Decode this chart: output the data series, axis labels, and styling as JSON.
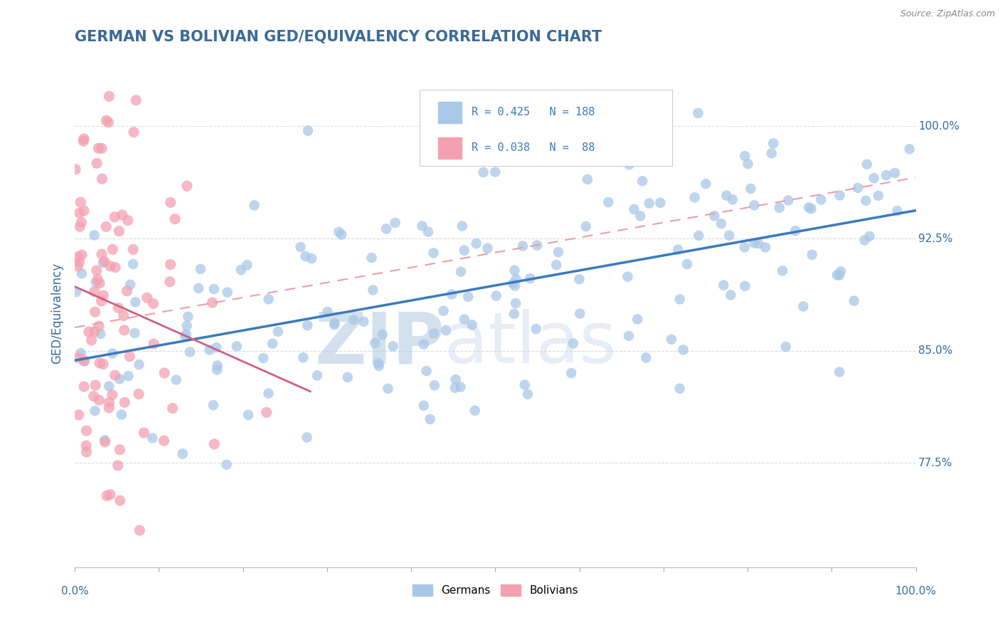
{
  "title": "GERMAN VS BOLIVIAN GED/EQUIVALENCY CORRELATION CHART",
  "source": "Source: ZipAtlas.com",
  "ylabel": "GED/Equivalency",
  "ytick_labels": [
    "77.5%",
    "85.0%",
    "92.5%",
    "100.0%"
  ],
  "ytick_values": [
    0.775,
    0.85,
    0.925,
    1.0
  ],
  "xlim": [
    0.0,
    1.0
  ],
  "ylim": [
    0.705,
    1.045
  ],
  "german_color": "#a8c8e8",
  "german_edge_color": "#a8c8e8",
  "bolivian_color": "#f4a0b0",
  "bolivian_edge_color": "#f4a0b0",
  "german_line_color": "#3a7abf",
  "bolivian_line_color": "#d06080",
  "dashed_line_color": "#e8a0a8",
  "watermark_zip": "ZIP",
  "watermark_atlas": "atlas",
  "title_color": "#3a6a9a",
  "title_fontsize": 15,
  "axis_label_color": "#3a6a9a",
  "tick_color": "#3a6a9a",
  "background_color": "#ffffff",
  "grid_color": "#cccccc",
  "source_color": "#888888",
  "legend_text_color": "#3a7abf"
}
